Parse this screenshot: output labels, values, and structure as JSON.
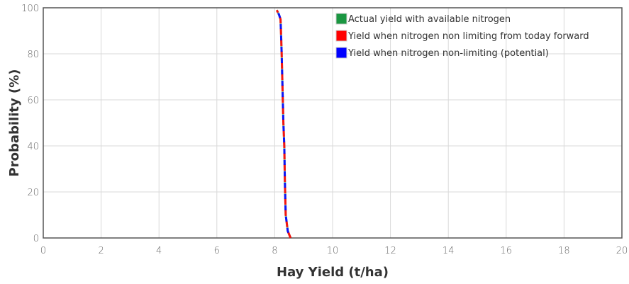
{
  "chart_data": {
    "type": "line",
    "xlabel": "Hay Yield (t/ha)",
    "ylabel": "Probability (%)",
    "xlim": [
      0,
      20
    ],
    "ylim": [
      0,
      100
    ],
    "xticks": [
      0,
      2,
      4,
      6,
      8,
      10,
      12,
      14,
      16,
      18,
      20
    ],
    "yticks": [
      0,
      20,
      40,
      60,
      80,
      100
    ],
    "grid": true,
    "legend": "top-right",
    "series": [
      {
        "name": "Actual yield with available nitrogen",
        "color": "#1a9641",
        "x": [
          8.55,
          8.45,
          8.38,
          8.35,
          8.33,
          8.3,
          8.28,
          8.26,
          8.24,
          8.22,
          8.2,
          8.15,
          8.07
        ],
        "y": [
          0,
          3,
          10,
          25,
          40,
          50,
          60,
          70,
          80,
          88,
          95,
          97,
          99
        ]
      },
      {
        "name": "Yield when nitrogen non limiting from today forward",
        "color": "#ff0000",
        "x": [
          8.55,
          8.45,
          8.38,
          8.35,
          8.33,
          8.3,
          8.28,
          8.26,
          8.24,
          8.22,
          8.2,
          8.15,
          8.07
        ],
        "y": [
          0,
          3,
          10,
          25,
          40,
          50,
          60,
          70,
          80,
          88,
          95,
          97,
          99
        ]
      },
      {
        "name": "Yield when nitrogen non-limiting (potential)",
        "color": "#0000ff",
        "x": [
          8.55,
          8.45,
          8.38,
          8.35,
          8.33,
          8.3,
          8.28,
          8.26,
          8.24,
          8.22,
          8.2,
          8.15,
          8.07
        ],
        "y": [
          0,
          3,
          10,
          25,
          40,
          50,
          60,
          70,
          80,
          88,
          95,
          97,
          99
        ]
      }
    ]
  }
}
